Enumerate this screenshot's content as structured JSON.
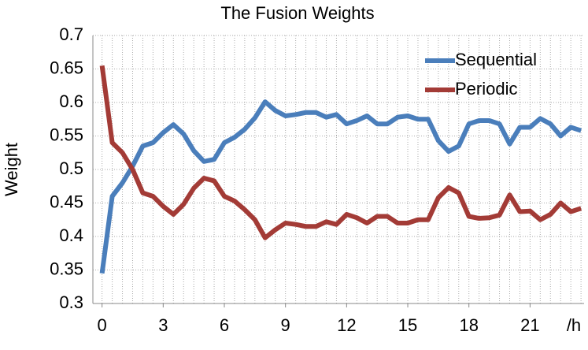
{
  "chart_data": {
    "type": "line",
    "title": "The Fusion Weights",
    "y_label": "Weight",
    "x_label": "/h",
    "x": [
      0,
      0.5,
      1,
      1.5,
      2,
      2.5,
      3,
      3.5,
      4,
      4.5,
      5,
      5.5,
      6,
      6.5,
      7,
      7.5,
      8,
      8.5,
      9,
      9.5,
      10,
      10.5,
      11,
      11.5,
      12,
      12.5,
      13,
      13.5,
      14,
      14.5,
      15,
      15.5,
      16,
      16.5,
      17,
      17.5,
      18,
      18.5,
      19,
      19.5,
      20,
      20.5,
      21,
      21.5,
      22,
      22.5,
      23,
      23.5
    ],
    "series": [
      {
        "name": "Sequential",
        "color": "#4a7ebb",
        "values": [
          0.345,
          0.46,
          0.48,
          0.505,
          0.535,
          0.54,
          0.555,
          0.567,
          0.553,
          0.528,
          0.512,
          0.515,
          0.54,
          0.548,
          0.56,
          0.577,
          0.601,
          0.588,
          0.58,
          0.582,
          0.585,
          0.585,
          0.578,
          0.582,
          0.568,
          0.573,
          0.58,
          0.568,
          0.568,
          0.578,
          0.58,
          0.575,
          0.575,
          0.543,
          0.527,
          0.535,
          0.568,
          0.573,
          0.573,
          0.568,
          0.538,
          0.563,
          0.563,
          0.576,
          0.568,
          0.55,
          0.563,
          0.558
        ]
      },
      {
        "name": "Periodic",
        "color": "#a33b36",
        "values": [
          0.655,
          0.54,
          0.525,
          0.5,
          0.465,
          0.46,
          0.445,
          0.433,
          0.448,
          0.472,
          0.487,
          0.483,
          0.46,
          0.453,
          0.44,
          0.425,
          0.398,
          0.41,
          0.42,
          0.418,
          0.415,
          0.415,
          0.422,
          0.418,
          0.433,
          0.428,
          0.42,
          0.43,
          0.43,
          0.42,
          0.42,
          0.425,
          0.425,
          0.458,
          0.473,
          0.465,
          0.43,
          0.427,
          0.428,
          0.432,
          0.462,
          0.437,
          0.438,
          0.425,
          0.433,
          0.45,
          0.437,
          0.442
        ]
      }
    ],
    "xlim": [
      -0.45,
      23.65
    ],
    "xticks": [
      0,
      3,
      6,
      9,
      12,
      15,
      18,
      21
    ],
    "ylim": [
      0.3,
      0.7
    ],
    "yticks": [
      0.3,
      0.35,
      0.4,
      0.45,
      0.5,
      0.55,
      0.6,
      0.65,
      0.7
    ],
    "grid": true,
    "legend": "upper right"
  }
}
